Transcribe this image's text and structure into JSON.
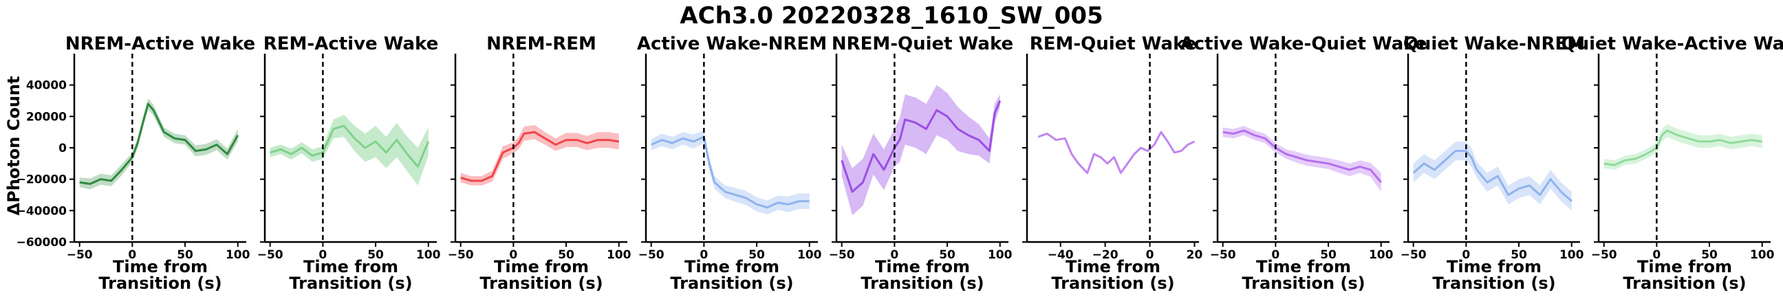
{
  "suptitle": "ACh3.0 20220328_1610_SW_005",
  "y_axis_label": "ΔPhoton Count",
  "x_axis_label_line1": "Time from",
  "x_axis_label_line2": "Transition (s)",
  "chart_data": [
    {
      "type": "line",
      "title": "NREM-Active Wake",
      "color": "#2e8b3e",
      "band_opacity": 0.3,
      "ylim": [
        -60000,
        60000
      ],
      "yticks": [
        -60000,
        -40000,
        -20000,
        0,
        20000,
        40000
      ],
      "ytick_labels": [
        "−60000",
        "−40000",
        "−20000",
        "0",
        "20000",
        "40000"
      ],
      "xlim": [
        -55,
        108
      ],
      "xticks": [
        -50,
        0,
        50,
        100
      ],
      "xtick_labels": [
        "−50",
        "0",
        "50",
        "100"
      ],
      "x": [
        -50,
        -40,
        -30,
        -20,
        -10,
        0,
        5,
        10,
        15,
        20,
        30,
        40,
        50,
        60,
        70,
        80,
        90,
        100
      ],
      "y": [
        -22000,
        -23000,
        -20000,
        -21000,
        -14000,
        -6000,
        3000,
        16000,
        28000,
        24000,
        10000,
        6000,
        5000,
        -2000,
        -1000,
        2000,
        -4000,
        8000
      ],
      "spread": [
        3000,
        3500,
        3500,
        3500,
        3500,
        3000,
        3000,
        3500,
        3500,
        3500,
        3000,
        3000,
        3000,
        3500,
        3500,
        3500,
        3500,
        4000
      ]
    },
    {
      "type": "line",
      "title": "REM-Active Wake",
      "color": "#7fd18b",
      "band_opacity": 0.45,
      "ylim": [
        -60000,
        60000
      ],
      "xlim": [
        -55,
        108
      ],
      "xticks": [
        -50,
        0,
        50,
        100
      ],
      "xtick_labels": [
        "−50",
        "0",
        "50",
        "100"
      ],
      "x": [
        -50,
        -40,
        -30,
        -20,
        -10,
        0,
        10,
        20,
        30,
        40,
        50,
        60,
        70,
        80,
        90,
        100
      ],
      "y": [
        -3000,
        -1000,
        -4000,
        0,
        -5000,
        -3000,
        12000,
        14000,
        6000,
        0,
        4000,
        -3000,
        5000,
        -4000,
        -12000,
        4000
      ],
      "spread": [
        3000,
        3000,
        3500,
        3500,
        4000,
        4000,
        6000,
        7000,
        8000,
        9000,
        10000,
        10000,
        11000,
        11000,
        12000,
        9000
      ]
    },
    {
      "type": "line",
      "title": "NREM-REM",
      "color": "#f0464a",
      "band_opacity": 0.35,
      "ylim": [
        -60000,
        60000
      ],
      "xlim": [
        -55,
        108
      ],
      "xticks": [
        -50,
        0,
        50,
        100
      ],
      "xtick_labels": [
        "−50",
        "0",
        "50",
        "100"
      ],
      "x": [
        -50,
        -40,
        -30,
        -20,
        -10,
        0,
        5,
        10,
        20,
        30,
        40,
        50,
        60,
        70,
        80,
        90,
        100
      ],
      "y": [
        -19000,
        -21000,
        -21000,
        -18000,
        -3000,
        0,
        3000,
        9000,
        10000,
        6000,
        2000,
        5000,
        5000,
        3000,
        5000,
        5000,
        4000
      ],
      "spread": [
        3000,
        3000,
        3000,
        3500,
        4000,
        3500,
        4000,
        4500,
        4500,
        4000,
        4000,
        4500,
        4500,
        4500,
        5000,
        5000,
        5000
      ]
    },
    {
      "type": "line",
      "title": "Active Wake-NREM",
      "color": "#8fb3ee",
      "band_opacity": 0.35,
      "ylim": [
        -60000,
        60000
      ],
      "xlim": [
        -55,
        108
      ],
      "xticks": [
        -50,
        0,
        50,
        100
      ],
      "xtick_labels": [
        "−50",
        "0",
        "50",
        "100"
      ],
      "x": [
        -50,
        -40,
        -30,
        -20,
        -10,
        0,
        5,
        10,
        20,
        30,
        40,
        50,
        60,
        70,
        80,
        90,
        100
      ],
      "y": [
        2000,
        5000,
        3000,
        6000,
        4000,
        7000,
        -10000,
        -22000,
        -28000,
        -30000,
        -32000,
        -36000,
        -38000,
        -35000,
        -36000,
        -34000,
        -34000
      ],
      "spread": [
        3500,
        4000,
        4000,
        4000,
        4500,
        4000,
        4000,
        4000,
        4000,
        4500,
        4500,
        4500,
        4500,
        4500,
        5000,
        5000,
        5000
      ]
    },
    {
      "type": "line",
      "title": "NREM-Quiet Wake",
      "color": "#9a4fe6",
      "band_opacity": 0.4,
      "ylim": [
        -60000,
        60000
      ],
      "xlim": [
        -55,
        108
      ],
      "xticks": [
        -50,
        0,
        50,
        100
      ],
      "xtick_labels": [
        "−50",
        "0",
        "50",
        "100"
      ],
      "x": [
        -50,
        -40,
        -30,
        -20,
        -10,
        0,
        5,
        10,
        20,
        30,
        40,
        50,
        60,
        70,
        80,
        90,
        95,
        100
      ],
      "y": [
        -8000,
        -28000,
        -22000,
        -4000,
        -14000,
        0,
        5000,
        18000,
        16000,
        12000,
        24000,
        20000,
        12000,
        8000,
        5000,
        -2000,
        22000,
        30000
      ],
      "spread": [
        10000,
        15000,
        15000,
        13000,
        13000,
        12000,
        14000,
        16000,
        16000,
        16000,
        16000,
        15000,
        14000,
        12000,
        10000,
        8000,
        6000,
        4000
      ]
    },
    {
      "type": "line",
      "title": "REM-Quiet Wake",
      "color": "#c084f0",
      "band_opacity": 0.3,
      "ylim": [
        -60000,
        60000
      ],
      "xlim": [
        -55,
        22
      ],
      "xticks": [
        -40,
        -20,
        0,
        20
      ],
      "xtick_labels": [
        "−40",
        "−20",
        "0",
        "20"
      ],
      "x": [
        -50,
        -46,
        -42,
        -38,
        -35,
        -32,
        -28,
        -25,
        -22,
        -19,
        -16,
        -13,
        -10,
        -7,
        -4,
        -1,
        2,
        5,
        8,
        11,
        14,
        17,
        20
      ],
      "y": [
        7000,
        9000,
        5000,
        6000,
        -4000,
        -10000,
        -16000,
        -4000,
        -6000,
        -10000,
        -6000,
        -16000,
        -10000,
        -4000,
        0,
        -2000,
        2000,
        10000,
        4000,
        -3000,
        -2000,
        2000,
        4000
      ],
      "spread": [
        0,
        0,
        0,
        0,
        0,
        0,
        0,
        0,
        0,
        0,
        0,
        0,
        0,
        0,
        0,
        0,
        0,
        0,
        0,
        0,
        0,
        0,
        0
      ]
    },
    {
      "type": "line",
      "title": "Active Wake-Quiet Wake",
      "color": "#b56ef0",
      "band_opacity": 0.35,
      "ylim": [
        -60000,
        60000
      ],
      "xlim": [
        -55,
        108
      ],
      "xticks": [
        -50,
        0,
        50,
        100
      ],
      "xtick_labels": [
        "−50",
        "0",
        "50",
        "100"
      ],
      "x": [
        -50,
        -40,
        -30,
        -20,
        -10,
        0,
        10,
        20,
        30,
        40,
        50,
        60,
        70,
        80,
        90,
        100
      ],
      "y": [
        10000,
        9000,
        11000,
        8000,
        6000,
        0,
        -4000,
        -6000,
        -8000,
        -9000,
        -10000,
        -12000,
        -14000,
        -12000,
        -14000,
        -22000
      ],
      "spread": [
        3000,
        3000,
        3000,
        3000,
        3000,
        3000,
        3000,
        3500,
        3500,
        3500,
        3500,
        4000,
        4000,
        4000,
        4500,
        6000
      ]
    },
    {
      "type": "line",
      "title": "Quiet Wake-NREM",
      "color": "#8fb3ee",
      "band_opacity": 0.35,
      "ylim": [
        -60000,
        60000
      ],
      "xlim": [
        -55,
        108
      ],
      "xticks": [
        -50,
        0,
        50,
        100
      ],
      "xtick_labels": [
        "−50",
        "0",
        "50",
        "100"
      ],
      "x": [
        -50,
        -40,
        -30,
        -20,
        -10,
        0,
        5,
        10,
        20,
        30,
        40,
        50,
        60,
        70,
        80,
        90,
        100
      ],
      "y": [
        -16000,
        -10000,
        -14000,
        -8000,
        -2000,
        -2000,
        -6000,
        -14000,
        -22000,
        -18000,
        -30000,
        -26000,
        -24000,
        -30000,
        -20000,
        -28000,
        -34000
      ],
      "spread": [
        6000,
        6000,
        6000,
        6000,
        6000,
        6000,
        6000,
        5000,
        6000,
        6000,
        6000,
        6000,
        6000,
        6000,
        6000,
        6000,
        6000
      ]
    },
    {
      "type": "line",
      "title": "Quiet Wake-Active Wake",
      "color": "#8fdc9a",
      "band_opacity": 0.35,
      "ylim": [
        -60000,
        60000
      ],
      "xlim": [
        -55,
        108
      ],
      "xticks": [
        -50,
        0,
        50,
        100
      ],
      "xtick_labels": [
        "−50",
        "0",
        "50",
        "100"
      ],
      "x": [
        -50,
        -40,
        -30,
        -20,
        -10,
        0,
        5,
        10,
        20,
        30,
        40,
        50,
        60,
        70,
        80,
        90,
        100
      ],
      "y": [
        -10000,
        -11000,
        -8000,
        -7000,
        -4000,
        0,
        8000,
        11000,
        8000,
        6000,
        4000,
        4000,
        5000,
        3000,
        4000,
        5000,
        4000
      ],
      "spread": [
        3000,
        3000,
        3000,
        3000,
        3000,
        3500,
        4000,
        4000,
        4000,
        4000,
        4000,
        4000,
        4000,
        4000,
        4000,
        4000,
        4000
      ]
    }
  ]
}
